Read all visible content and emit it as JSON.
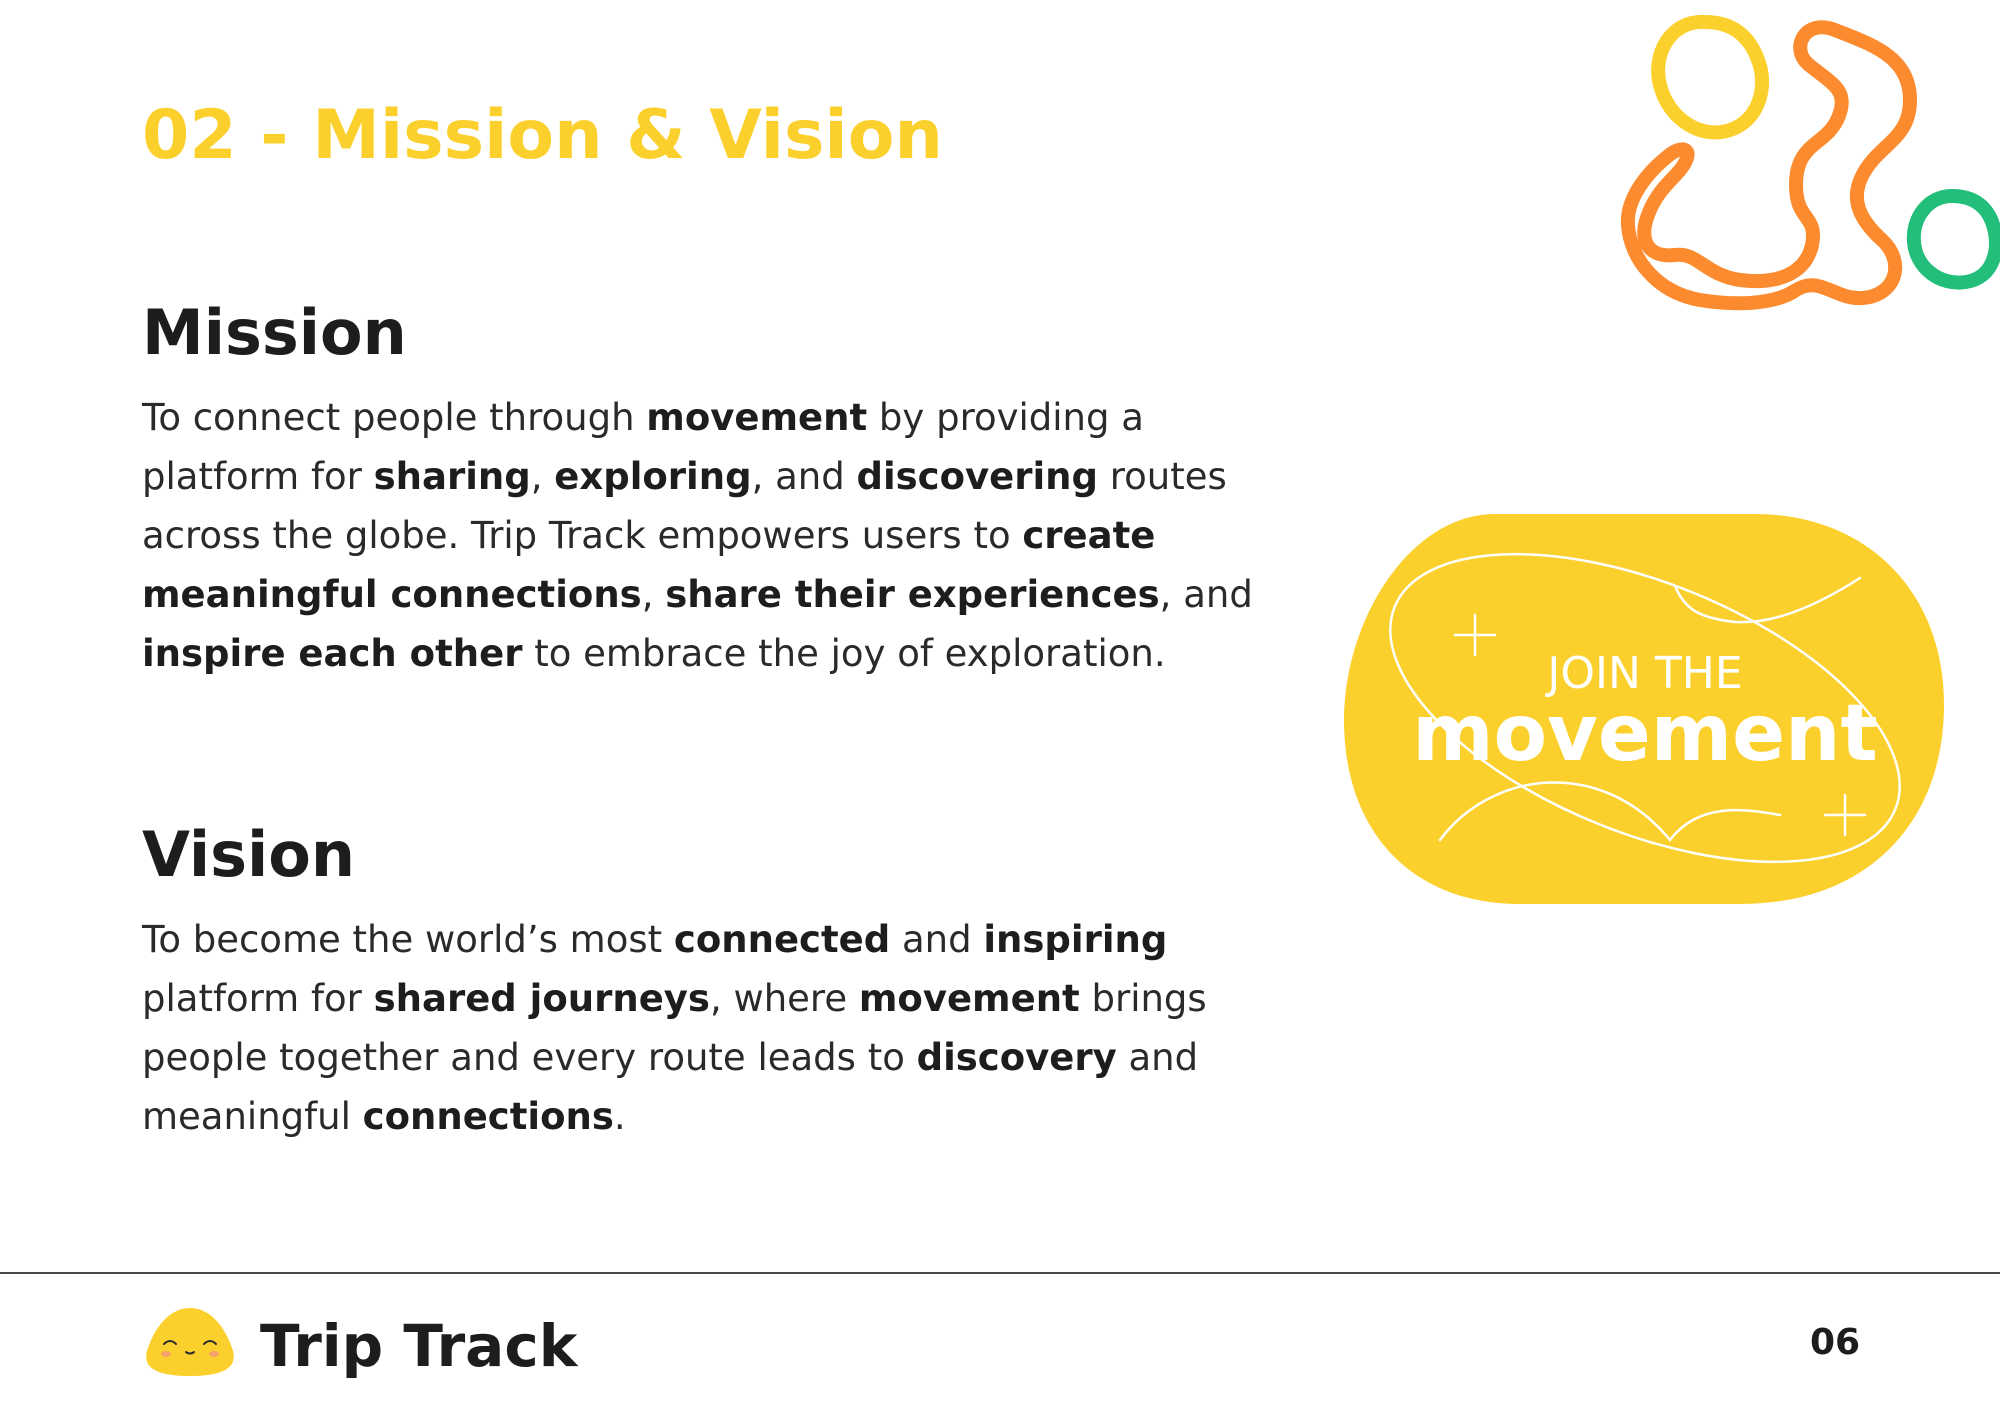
{
  "page": {
    "title": "02 - Mission & Vision",
    "page_number": "06"
  },
  "mission": {
    "heading": "Mission",
    "body": [
      {
        "text": "To connect people through ",
        "bold": false
      },
      {
        "text": "movement",
        "bold": true
      },
      {
        "text": " by providing a platform for ",
        "bold": false
      },
      {
        "text": "sharing",
        "bold": true
      },
      {
        "text": ", ",
        "bold": false
      },
      {
        "text": "exploring",
        "bold": true
      },
      {
        "text": ", and ",
        "bold": false
      },
      {
        "text": "discovering",
        "bold": true
      },
      {
        "text": " routes across the globe. Trip Track empowers users to ",
        "bold": false
      },
      {
        "text": "create meaningful connections",
        "bold": true
      },
      {
        "text": ", ",
        "bold": false
      },
      {
        "text": "share their experiences",
        "bold": true
      },
      {
        "text": ", and ",
        "bold": false
      },
      {
        "text": "inspire each other",
        "bold": true
      },
      {
        "text": " to embrace the joy of exploration.",
        "bold": false
      }
    ]
  },
  "vision": {
    "heading": "Vision",
    "body": [
      {
        "text": "To become the world’s most ",
        "bold": false
      },
      {
        "text": "connected",
        "bold": true
      },
      {
        "text": " and ",
        "bold": false
      },
      {
        "text": "inspiring",
        "bold": true
      },
      {
        "text": " platform for ",
        "bold": false
      },
      {
        "text": "shared journeys",
        "bold": true
      },
      {
        "text": ", where ",
        "bold": false
      },
      {
        "text": "movement",
        "bold": true
      },
      {
        "text": " brings people together and every route leads to ",
        "bold": false
      },
      {
        "text": "discovery",
        "bold": true
      },
      {
        "text": " and meaningful ",
        "bold": false
      },
      {
        "text": "connections",
        "bold": true
      },
      {
        "text": ".",
        "bold": false
      }
    ]
  },
  "badge": {
    "line1": "JOIN THE",
    "line2": "movement"
  },
  "footer": {
    "brand": "Trip Track",
    "logo_icon": "smiling-blob-icon"
  },
  "colors": {
    "accent_yellow": "#fcd02c",
    "accent_orange": "#fb8b2e",
    "accent_green": "#23be7a",
    "text_dark": "#1d1d1f"
  }
}
